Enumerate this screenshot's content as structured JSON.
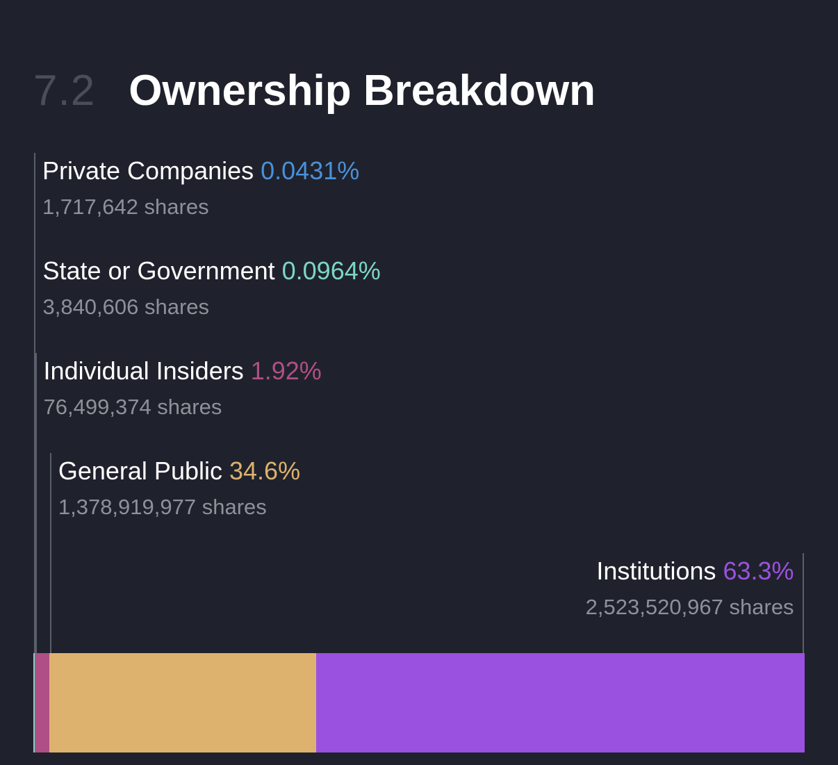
{
  "section": {
    "number": "7.2",
    "title": "Ownership Breakdown"
  },
  "chart_data": {
    "type": "bar",
    "orientation": "horizontal-stacked-100",
    "title": "",
    "categories": [
      "Private Companies",
      "State or Government",
      "Individual Insiders",
      "General Public",
      "Institutions"
    ],
    "values": [
      0.0431,
      0.0964,
      1.92,
      34.6,
      63.3
    ],
    "value_labels": [
      "0.0431%",
      "0.0964%",
      "1.92%",
      "34.6%",
      "63.3%"
    ],
    "shares_labels": [
      "1,717,642 shares",
      "3,840,606 shares",
      "76,499,374 shares",
      "1,378,919,977 shares",
      "2,523,520,967 shares"
    ],
    "colors": [
      "#4a90d9",
      "#7dd6c8",
      "#b04f86",
      "#ddb26e",
      "#9b51e0"
    ],
    "xlim": [
      0,
      100
    ],
    "grid": false,
    "legend": "none"
  }
}
